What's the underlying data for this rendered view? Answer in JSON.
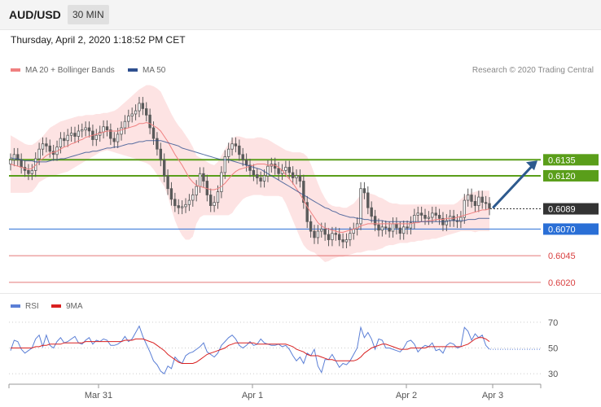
{
  "header": {
    "pair": "AUD/USD",
    "timeframe": "30 MIN",
    "datetime": "Thursday, April 2, 2020 1:18:52 PM CET"
  },
  "credit": "Research © 2020 Trading Central",
  "colors": {
    "ma20": "#f08080",
    "ma50": "#2e4f8f",
    "band_fill": "#fde0e0",
    "resistance": "#5a9e1a",
    "pivot": "#2a6fd6",
    "support": "#d94040",
    "current": "#333333",
    "rsi": "#5b7fd6",
    "rsi_ma": "#d92020",
    "arrow": "#2d5a8e",
    "candle": "#5a5a5a"
  },
  "chart_data": [
    {
      "type": "candlestick",
      "title": "AUD/USD 30 MIN",
      "legend": [
        {
          "name": "MA 20 + Bollinger Bands",
          "color": "#f08080"
        },
        {
          "name": "MA 50",
          "color": "#2e4f8f"
        }
      ],
      "x_ticks": [
        "Mar 31",
        "Apr 1",
        "Apr 2",
        "Apr 3"
      ],
      "ylim": [
        0.601,
        0.622
      ],
      "levels": [
        {
          "value": 0.6135,
          "label": "0.6135",
          "kind": "resistance"
        },
        {
          "value": 0.612,
          "label": "0.6120",
          "kind": "resistance"
        },
        {
          "value": 0.6089,
          "label": "0.6089",
          "kind": "current"
        },
        {
          "value": 0.607,
          "label": "0.6070",
          "kind": "pivot"
        },
        {
          "value": 0.6045,
          "label": "0.6045",
          "kind": "support"
        },
        {
          "value": 0.602,
          "label": "0.6020",
          "kind": "support"
        }
      ],
      "close": [
        0.6135,
        0.614,
        0.6135,
        0.6128,
        0.6125,
        0.6122,
        0.6125,
        0.6136,
        0.6145,
        0.615,
        0.6148,
        0.6143,
        0.614,
        0.6147,
        0.6155,
        0.6153,
        0.6158,
        0.616,
        0.6157,
        0.6162,
        0.6163,
        0.6165,
        0.6162,
        0.6154,
        0.6158,
        0.6161,
        0.6166,
        0.6163,
        0.6155,
        0.6152,
        0.6159,
        0.6165,
        0.6171,
        0.6176,
        0.6178,
        0.6181,
        0.6188,
        0.6183,
        0.6177,
        0.6165,
        0.6155,
        0.6145,
        0.6135,
        0.612,
        0.6108,
        0.6098,
        0.6092,
        0.609,
        0.6091,
        0.6093,
        0.6097,
        0.6102,
        0.611,
        0.6122,
        0.6115,
        0.6102,
        0.6092,
        0.6095,
        0.6105,
        0.6123,
        0.6138,
        0.6145,
        0.615,
        0.6148,
        0.614,
        0.6135,
        0.613,
        0.6125,
        0.6121,
        0.6118,
        0.6115,
        0.612,
        0.6129,
        0.6131,
        0.6127,
        0.6122,
        0.6125,
        0.6128,
        0.6123,
        0.6118,
        0.612,
        0.6115,
        0.6095,
        0.6077,
        0.6068,
        0.6062,
        0.6068,
        0.607,
        0.6065,
        0.606,
        0.6066,
        0.6065,
        0.606,
        0.6058,
        0.606,
        0.6066,
        0.607,
        0.6075,
        0.6108,
        0.6104,
        0.609,
        0.6082,
        0.6074,
        0.6069,
        0.6072,
        0.6071,
        0.6068,
        0.6075,
        0.6071,
        0.6066,
        0.6072,
        0.6071,
        0.6076,
        0.6083,
        0.6085,
        0.6083,
        0.608,
        0.6081,
        0.6085,
        0.6083,
        0.608,
        0.6074,
        0.6078,
        0.6082,
        0.6078,
        0.6077,
        0.6081,
        0.6097,
        0.6102,
        0.6096,
        0.6092,
        0.61,
        0.6095,
        0.6094,
        0.6089
      ],
      "ma20": [
        0.6131,
        0.613,
        0.6129,
        0.6128,
        0.6127,
        0.6126,
        0.6127,
        0.613,
        0.6134,
        0.6136,
        0.6139,
        0.6141,
        0.6142,
        0.6143,
        0.6145,
        0.6147,
        0.6148,
        0.615,
        0.6151,
        0.6153,
        0.6154,
        0.6156,
        0.6157,
        0.6158,
        0.6159,
        0.616,
        0.6161,
        0.6162,
        0.6162,
        0.6162,
        0.6162,
        0.6163,
        0.6164,
        0.6165,
        0.6166,
        0.6167,
        0.6169,
        0.6169,
        0.617,
        0.6169,
        0.6167,
        0.6165,
        0.6162,
        0.6157,
        0.6152,
        0.6146,
        0.614,
        0.6135,
        0.613,
        0.6124,
        0.6118,
        0.6114,
        0.6111,
        0.611,
        0.6109,
        0.6108,
        0.6107,
        0.6107,
        0.6108,
        0.611,
        0.6113,
        0.6117,
        0.6121,
        0.6124,
        0.6126,
        0.6127,
        0.6128,
        0.6129,
        0.613,
        0.6131,
        0.6131,
        0.6131,
        0.613,
        0.613,
        0.613,
        0.6128,
        0.6125,
        0.6121,
        0.6117,
        0.6113,
        0.6108,
        0.6103,
        0.6097,
        0.6091,
        0.6086,
        0.6081,
        0.6076,
        0.6073,
        0.6071,
        0.607,
        0.6069,
        0.6068,
        0.6067,
        0.6067,
        0.6068,
        0.6069,
        0.607,
        0.6071,
        0.6073,
        0.6074,
        0.6075,
        0.6075,
        0.6075,
        0.6075,
        0.6075,
        0.6075,
        0.6075,
        0.6075,
        0.6075,
        0.6075,
        0.6075,
        0.6075,
        0.6075,
        0.6076,
        0.6076,
        0.6077,
        0.6077,
        0.6078,
        0.6078,
        0.6079,
        0.6079,
        0.6079,
        0.608,
        0.608,
        0.608,
        0.6081,
        0.6082,
        0.6083,
        0.6084,
        0.6085,
        0.6086,
        0.6087,
        0.6088,
        0.6088,
        0.6089
      ],
      "bb_upper": [
        0.6158,
        0.6156,
        0.6154,
        0.6152,
        0.615,
        0.6149,
        0.6149,
        0.6151,
        0.6154,
        0.6157,
        0.6161,
        0.6165,
        0.6167,
        0.6169,
        0.6171,
        0.6172,
        0.6173,
        0.6174,
        0.6175,
        0.6176,
        0.6176,
        0.6177,
        0.6177,
        0.6177,
        0.6178,
        0.6178,
        0.6179,
        0.6179,
        0.618,
        0.6181,
        0.6183,
        0.6186,
        0.6189,
        0.6192,
        0.6195,
        0.6198,
        0.6201,
        0.6203,
        0.6205,
        0.6205,
        0.6204,
        0.6202,
        0.6199,
        0.6192,
        0.6185,
        0.6178,
        0.6172,
        0.6167,
        0.6163,
        0.6158,
        0.6153,
        0.6147,
        0.6139,
        0.6137,
        0.6135,
        0.6133,
        0.6131,
        0.613,
        0.6133,
        0.6139,
        0.6145,
        0.615,
        0.6155,
        0.6157,
        0.6157,
        0.6156,
        0.6155,
        0.6155,
        0.6155,
        0.6156,
        0.6156,
        0.6155,
        0.6154,
        0.6152,
        0.615,
        0.6148,
        0.6146,
        0.6144,
        0.6143,
        0.6142,
        0.6142,
        0.6142,
        0.6141,
        0.6138,
        0.6131,
        0.6122,
        0.6113,
        0.6105,
        0.6099,
        0.6094,
        0.6092,
        0.6091,
        0.6091,
        0.609,
        0.609,
        0.6092,
        0.6094,
        0.6098,
        0.6102,
        0.6104,
        0.6104,
        0.6103,
        0.6102,
        0.61,
        0.6099,
        0.6097,
        0.6095,
        0.6094,
        0.6094,
        0.6093,
        0.6093,
        0.6093,
        0.6093,
        0.6093,
        0.6093,
        0.6093,
        0.6093,
        0.6093,
        0.6093,
        0.6093,
        0.6093,
        0.6093,
        0.6093,
        0.6093,
        0.6093,
        0.6095,
        0.6098,
        0.6101,
        0.6103,
        0.6104,
        0.6105,
        0.6106,
        0.6106,
        0.6106,
        0.6106
      ],
      "bb_lower": [
        0.6104,
        0.6104,
        0.6104,
        0.6104,
        0.6104,
        0.6104,
        0.6105,
        0.6109,
        0.6114,
        0.6116,
        0.6118,
        0.6119,
        0.612,
        0.6121,
        0.6122,
        0.6123,
        0.6124,
        0.6126,
        0.6128,
        0.613,
        0.6132,
        0.6134,
        0.6136,
        0.6138,
        0.614,
        0.6142,
        0.6143,
        0.6144,
        0.6143,
        0.6142,
        0.6141,
        0.614,
        0.6139,
        0.6138,
        0.6137,
        0.6136,
        0.6134,
        0.6133,
        0.6132,
        0.613,
        0.6126,
        0.6121,
        0.6115,
        0.611,
        0.6101,
        0.6089,
        0.6078,
        0.607,
        0.6064,
        0.606,
        0.606,
        0.6063,
        0.6075,
        0.6081,
        0.6083,
        0.6083,
        0.6083,
        0.6083,
        0.6083,
        0.6083,
        0.6083,
        0.6083,
        0.6085,
        0.609,
        0.6094,
        0.6098,
        0.61,
        0.6101,
        0.6102,
        0.6102,
        0.6102,
        0.6101,
        0.6101,
        0.6101,
        0.6101,
        0.6101,
        0.61,
        0.6094,
        0.6086,
        0.6078,
        0.607,
        0.6062,
        0.6055,
        0.6051,
        0.6049,
        0.6048,
        0.6045,
        0.6042,
        0.6039,
        0.604,
        0.6042,
        0.6043,
        0.6044,
        0.6044,
        0.6045,
        0.6046,
        0.6047,
        0.6048,
        0.6048,
        0.6049,
        0.605,
        0.605,
        0.605,
        0.6051,
        0.6052,
        0.6054,
        0.6055,
        0.6055,
        0.6056,
        0.6057,
        0.6057,
        0.6057,
        0.6058,
        0.6058,
        0.6059,
        0.6059,
        0.606,
        0.606,
        0.6061,
        0.6061,
        0.6062,
        0.6063,
        0.6064,
        0.6065,
        0.6066,
        0.6067,
        0.6068,
        0.6068,
        0.6068,
        0.6068,
        0.6067,
        0.6068,
        0.6068,
        0.6068,
        0.6068
      ],
      "ma50": [
        0.6137,
        0.6136,
        0.6136,
        0.6135,
        0.6134,
        0.6134,
        0.6134,
        0.6133,
        0.6133,
        0.6133,
        0.6133,
        0.6134,
        0.6135,
        0.6135,
        0.6136,
        0.6136,
        0.6137,
        0.6138,
        0.6139,
        0.614,
        0.6141,
        0.6142,
        0.6142,
        0.6143,
        0.6143,
        0.6144,
        0.6145,
        0.6146,
        0.6146,
        0.6147,
        0.6147,
        0.6148,
        0.6149,
        0.615,
        0.615,
        0.6151,
        0.6152,
        0.6152,
        0.6153,
        0.6153,
        0.6153,
        0.6153,
        0.6153,
        0.6152,
        0.6151,
        0.615,
        0.6149,
        0.6148,
        0.6146,
        0.6145,
        0.6144,
        0.6143,
        0.6142,
        0.6141,
        0.614,
        0.6139,
        0.6138,
        0.6137,
        0.6136,
        0.6135,
        0.6135,
        0.6135,
        0.6134,
        0.6133,
        0.6132,
        0.6131,
        0.613,
        0.6129,
        0.6128,
        0.6127,
        0.6126,
        0.6124,
        0.6122,
        0.612,
        0.6118,
        0.6116,
        0.6114,
        0.6112,
        0.611,
        0.6108,
        0.6106,
        0.6104,
        0.6102,
        0.61,
        0.6098,
        0.6096,
        0.6094,
        0.6092,
        0.609,
        0.6089,
        0.6087,
        0.6086,
        0.6084,
        0.6083,
        0.6082,
        0.6081,
        0.6081,
        0.608,
        0.608,
        0.6079,
        0.6079,
        0.6078,
        0.6078,
        0.6078,
        0.6078,
        0.6077,
        0.6077,
        0.6077,
        0.6077,
        0.6077,
        0.6077,
        0.6077,
        0.6077,
        0.6077,
        0.6077,
        0.6077,
        0.6077,
        0.6077,
        0.6077,
        0.6077,
        0.6077,
        0.6077,
        0.6077,
        0.6078,
        0.6078,
        0.6078,
        0.6078,
        0.6078,
        0.6079,
        0.6079,
        0.6079,
        0.608,
        0.608,
        0.608,
        0.608
      ]
    },
    {
      "type": "line",
      "title": "RSI",
      "legend": [
        {
          "name": "RSI",
          "color": "#5b7fd6"
        },
        {
          "name": "9MA",
          "color": "#d92020"
        }
      ],
      "y_ticks": [
        30,
        50,
        70
      ],
      "ylim": [
        20,
        80
      ],
      "series": [
        {
          "name": "RSI",
          "values": [
            48,
            56,
            55,
            49,
            46,
            48,
            50,
            57,
            60,
            51,
            60,
            52,
            50,
            55,
            58,
            54,
            55,
            57,
            59,
            54,
            53,
            56,
            58,
            53,
            56,
            55,
            57,
            56,
            52,
            52,
            53,
            55,
            59,
            55,
            57,
            62,
            67,
            59,
            53,
            47,
            40,
            37,
            32,
            30,
            36,
            34,
            43,
            40,
            38,
            44,
            46,
            47,
            49,
            51,
            54,
            47,
            45,
            43,
            46,
            52,
            55,
            58,
            60,
            57,
            52,
            50,
            52,
            55,
            52,
            53,
            57,
            54,
            53,
            52,
            52,
            53,
            51,
            52,
            49,
            44,
            40,
            43,
            38,
            46,
            44,
            49,
            36,
            31,
            41,
            41,
            45,
            40,
            35,
            38,
            37,
            40,
            45,
            50,
            66,
            58,
            62,
            57,
            49,
            57,
            56,
            50,
            50,
            49,
            48,
            47,
            50,
            55,
            56,
            53,
            47,
            50,
            52,
            51,
            54,
            48,
            49,
            46,
            52,
            54,
            53,
            50,
            51,
            66,
            63,
            56,
            61,
            58,
            60,
            52,
            49
          ]
        },
        {
          "name": "9MA",
          "values": [
            50,
            50,
            50,
            50,
            50,
            50,
            50,
            51,
            51,
            52,
            52,
            53,
            53,
            53,
            53,
            54,
            54,
            54,
            54,
            54,
            54,
            55,
            55,
            55,
            55,
            55,
            55,
            55,
            55,
            55,
            55,
            55,
            56,
            56,
            56,
            57,
            57,
            57,
            56,
            55,
            54,
            52,
            50,
            48,
            45,
            43,
            41,
            39,
            38,
            38,
            38,
            38,
            39,
            41,
            43,
            45,
            46,
            47,
            48,
            49,
            50,
            52,
            53,
            54,
            54,
            54,
            54,
            54,
            54,
            53,
            53,
            53,
            53,
            53,
            53,
            53,
            53,
            53,
            52,
            51,
            49,
            48,
            47,
            45,
            44,
            44,
            44,
            43,
            42,
            41,
            41,
            40,
            40,
            40,
            40,
            40,
            40,
            41,
            43,
            46,
            48,
            50,
            51,
            52,
            53,
            53,
            52,
            51,
            50,
            49,
            49,
            49,
            50,
            50,
            50,
            50,
            50,
            51,
            51,
            51,
            51,
            51,
            51,
            51,
            51,
            51,
            51,
            52,
            53,
            55,
            57,
            58,
            58,
            57,
            55
          ]
        }
      ]
    }
  ]
}
